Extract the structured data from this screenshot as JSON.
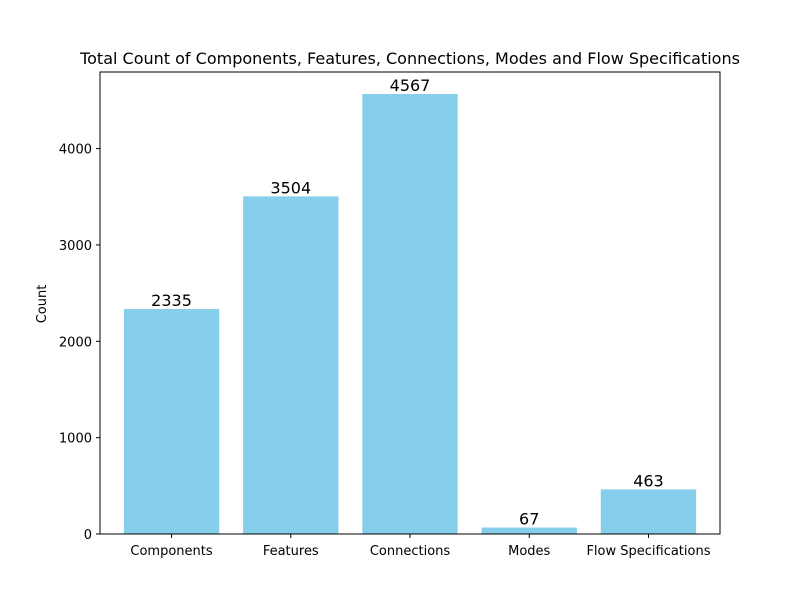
{
  "chart_data": {
    "type": "bar",
    "title": "Total Count of Components, Features, Connections, Modes and Flow Specifications",
    "xlabel": "",
    "ylabel": "Count",
    "categories": [
      "Components",
      "Features",
      "Connections",
      "Modes",
      "Flow Specifications"
    ],
    "values": [
      2335,
      3504,
      4567,
      67,
      463
    ],
    "ylim": [
      0,
      4795
    ],
    "yticks": [
      0,
      1000,
      2000,
      3000,
      4000
    ],
    "bar_color": "#87ceeb",
    "grid": false,
    "legend": "none"
  }
}
